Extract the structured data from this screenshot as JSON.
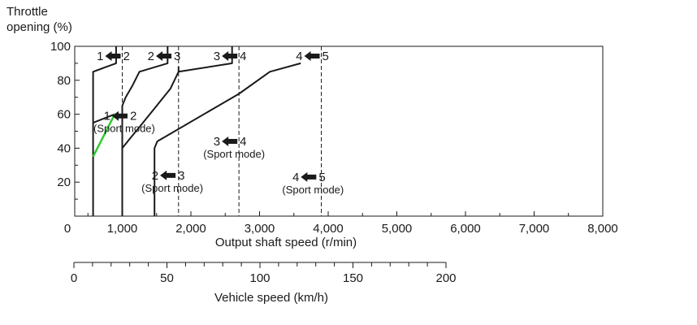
{
  "chart_data": {
    "type": "line",
    "ylabel_lines": [
      "Throttle",
      "opening (%)"
    ],
    "xlabel": "Output shaft speed (r/min)",
    "xlim": [
      0,
      8000
    ],
    "ylim": [
      0,
      100
    ],
    "x_ticks": [
      0,
      1000,
      2000,
      3000,
      4000,
      5000,
      6000,
      7000,
      8000
    ],
    "x_tick_labels": [
      "0",
      "1,000",
      "2,000",
      "3,000",
      "4,000",
      "5,000",
      "6,000",
      "7,000",
      "8,000"
    ],
    "y_ticks": [
      20,
      40,
      60,
      80,
      100
    ],
    "y_tick_labels": [
      "20",
      "40",
      "60",
      "80",
      "100"
    ],
    "grid": false,
    "series": [
      {
        "key": "1-2",
        "color": "#1a1a1a",
        "x": [
          910,
          910,
          575,
          575
        ],
        "y": [
          100,
          90,
          85,
          0
        ]
      },
      {
        "key": "2-1",
        "color": "#1a1a1a",
        "x": [
          575,
          890
        ],
        "y": [
          55,
          60
        ]
      },
      {
        "key": "2-3",
        "color": "#1a1a1a",
        "x": [
          1660,
          1660,
          1250,
          1150,
          1050,
          1000,
          1000
        ],
        "y": [
          100,
          90,
          85,
          77,
          70,
          65,
          0
        ]
      },
      {
        "key": "3-2",
        "color": "#1a1a1a",
        "x": [
          1000,
          1100,
          1300,
          1500,
          1700,
          1820,
          1820
        ],
        "y": [
          40,
          45,
          55,
          65,
          75,
          85,
          88
        ]
      },
      {
        "key": "3-4",
        "color": "#1a1a1a",
        "x": [
          2600,
          2600,
          1820
        ],
        "y": [
          100,
          90,
          85
        ]
      },
      {
        "key": "4-3",
        "color": "#1a1a1a",
        "x": [
          1470,
          1470,
          1510,
          2700,
          3150,
          3600
        ],
        "y": [
          0,
          40,
          44,
          72,
          85,
          90
        ]
      },
      {
        "key": "sport-2-1",
        "color": "#2ecc2e",
        "x": [
          575,
          890
        ],
        "y": [
          35,
          60
        ]
      }
    ],
    "vlines": [
      1000,
      1820,
      2700,
      3900
    ],
    "annotations": [
      {
        "key": "a12",
        "from": "1",
        "to": "2",
        "mode": "",
        "x": 1000,
        "y": 100
      },
      {
        "key": "a23",
        "from": "2",
        "to": "3",
        "mode": "",
        "x": 1740,
        "y": 100
      },
      {
        "key": "a34",
        "from": "3",
        "to": "4",
        "mode": "",
        "x": 2700,
        "y": 100
      },
      {
        "key": "a45",
        "from": "4",
        "to": "5",
        "mode": "",
        "x": 3900,
        "y": 100
      },
      {
        "key": "s12",
        "from": "1",
        "to": "2",
        "mode": "(Sport mode)",
        "x": 1100,
        "y": 59
      },
      {
        "key": "s34",
        "from": "3",
        "to": "4",
        "mode": "(Sport mode)",
        "x": 2700,
        "y": 44
      },
      {
        "key": "s23",
        "from": "2",
        "to": "3",
        "mode": "(Sport mode)",
        "x": 1800,
        "y": 24
      },
      {
        "key": "s45",
        "from": "4",
        "to": "5",
        "mode": "(Sport mode)",
        "x": 3850,
        "y": 23
      }
    ],
    "vehicle_speed_axis": {
      "label": "Vehicle speed (km/h)",
      "range": [
        0,
        200
      ],
      "ticks": [
        0,
        50,
        100,
        150,
        200
      ],
      "tick_labels": [
        "0",
        "50",
        "100",
        "150",
        "200"
      ],
      "minor_step": 10
    }
  }
}
